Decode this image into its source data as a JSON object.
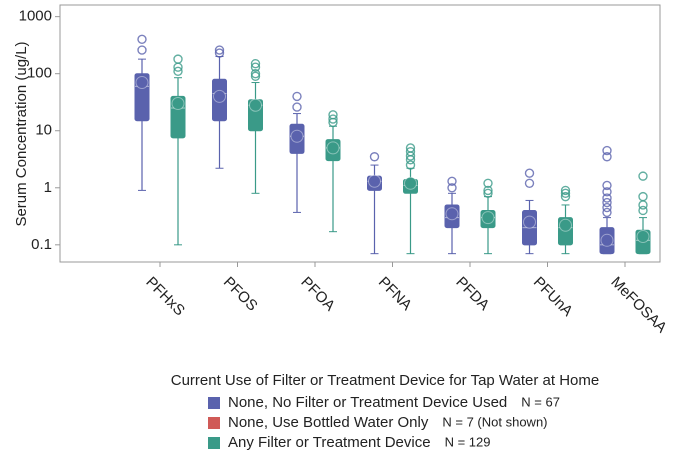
{
  "chart_data": {
    "type": "box",
    "y_label": "Serum Concentration (ug/L)",
    "log_scale": true,
    "ylim": [
      0.05,
      1600
    ],
    "yticks": [
      0.1,
      1,
      10,
      100,
      1000
    ],
    "categories": [
      "PFHxS",
      "PFOS",
      "PFOA",
      "PFNA",
      "PFDA",
      "PFUnA",
      "MeFOSAA"
    ],
    "legend_title": "Current Use of Filter or Treatment Device for Tap Water at Home",
    "series": [
      {
        "name": "None, No Filter or Treatment Device Used",
        "note": "N = 67",
        "color": "#5a62ad",
        "boxes": [
          {
            "min": 0.9,
            "q1": 15,
            "median": 60,
            "q3": 100,
            "max": 180,
            "mean": 70,
            "outliers": [
              260,
              400
            ]
          },
          {
            "min": 2.2,
            "q1": 15,
            "median": 45,
            "q3": 80,
            "max": 200,
            "mean": 40,
            "outliers": [
              230,
              260
            ]
          },
          {
            "min": 0.37,
            "q1": 4,
            "median": 8,
            "q3": 13,
            "max": 20,
            "mean": 8,
            "outliers": [
              26,
              40
            ]
          },
          {
            "min": 0.07,
            "q1": 0.9,
            "median": 1.3,
            "q3": 1.6,
            "max": 2.5,
            "mean": 1.3,
            "outliers": [
              3.5
            ]
          },
          {
            "min": 0.07,
            "q1": 0.2,
            "median": 0.3,
            "q3": 0.5,
            "max": 0.8,
            "mean": 0.35,
            "outliers": [
              1.0,
              1.3
            ]
          },
          {
            "min": 0.07,
            "q1": 0.1,
            "median": 0.2,
            "q3": 0.4,
            "max": 0.6,
            "mean": 0.25,
            "outliers": [
              1.2,
              1.8
            ]
          },
          {
            "min": 0.07,
            "q1": 0.07,
            "median": 0.1,
            "q3": 0.2,
            "max": 0.3,
            "mean": 0.12,
            "outliers": [
              0.37,
              0.45,
              0.55,
              0.66,
              0.85,
              1.1,
              3.5,
              4.5
            ]
          }
        ]
      },
      {
        "name": "None, Use Bottled Water Only",
        "note": "N = 7 (Not shown)",
        "color": "#d05a57"
      },
      {
        "name": "Any Filter or Treatment Device",
        "note": "N = 129",
        "color": "#3a9a88",
        "boxes": [
          {
            "min": 0.1,
            "q1": 7.5,
            "median": 25,
            "q3": 40,
            "max": 85,
            "mean": 30,
            "outliers": [
              110,
              130,
              180
            ]
          },
          {
            "min": 0.8,
            "q1": 10,
            "median": 28,
            "q3": 35,
            "max": 70,
            "mean": 28,
            "outliers": [
              90,
              100,
              130,
              150
            ]
          },
          {
            "min": 0.17,
            "q1": 3,
            "median": 5,
            "q3": 7,
            "max": 12,
            "mean": 5,
            "outliers": [
              14,
              16,
              19
            ]
          },
          {
            "min": 0.07,
            "q1": 0.8,
            "median": 1.1,
            "q3": 1.4,
            "max": 2.2,
            "mean": 1.2,
            "outliers": [
              2.5,
              3.1,
              3.6,
              4.3,
              5
            ]
          },
          {
            "min": 0.07,
            "q1": 0.2,
            "median": 0.3,
            "q3": 0.4,
            "max": 0.7,
            "mean": 0.3,
            "outliers": [
              0.8,
              0.9,
              1.2
            ]
          },
          {
            "min": 0.07,
            "q1": 0.1,
            "median": 0.2,
            "q3": 0.3,
            "max": 0.5,
            "mean": 0.22,
            "outliers": [
              0.7,
              0.8,
              0.9
            ]
          },
          {
            "min": 0.07,
            "q1": 0.07,
            "median": 0.12,
            "q3": 0.18,
            "max": 0.3,
            "mean": 0.14,
            "outliers": [
              0.4,
              0.5,
              0.7,
              1.6
            ]
          }
        ]
      }
    ]
  }
}
